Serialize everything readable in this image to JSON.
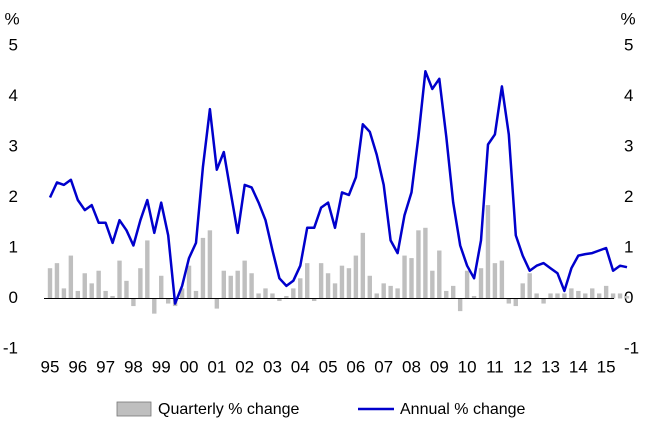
{
  "chart_data": {
    "type": "bar_line",
    "y_unit": "%",
    "categories": [
      "95",
      null,
      null,
      null,
      "96",
      null,
      null,
      null,
      "97",
      null,
      null,
      null,
      "98",
      null,
      null,
      null,
      "99",
      null,
      null,
      null,
      "00",
      null,
      null,
      null,
      "01",
      null,
      null,
      null,
      "02",
      null,
      null,
      null,
      "03",
      null,
      null,
      null,
      "04",
      null,
      null,
      null,
      "05",
      null,
      null,
      null,
      "06",
      null,
      null,
      null,
      "07",
      null,
      null,
      null,
      "08",
      null,
      null,
      null,
      "09",
      null,
      null,
      null,
      "10",
      null,
      null,
      null,
      "11",
      null,
      null,
      null,
      "12",
      null,
      null,
      null,
      "13",
      null,
      null,
      null,
      "14",
      null,
      null,
      null,
      "15",
      null,
      null,
      null
    ],
    "series": [
      {
        "name": "Quarterly % change",
        "type": "bar",
        "color": "#bfbfbf",
        "values": [
          0.6,
          0.7,
          0.2,
          0.85,
          0.15,
          0.5,
          0.3,
          0.55,
          0.15,
          0.05,
          0.75,
          0.35,
          -0.15,
          0.6,
          1.15,
          -0.3,
          0.45,
          -0.1,
          -0.15,
          0.2,
          0.65,
          0.15,
          1.2,
          1.35,
          -0.2,
          0.55,
          0.45,
          0.55,
          0.75,
          0.5,
          0.1,
          0.2,
          0.1,
          -0.05,
          0.05,
          0.2,
          0.4,
          0.7,
          -0.05,
          0.7,
          0.5,
          0.3,
          0.65,
          0.6,
          0.85,
          1.3,
          0.45,
          0.1,
          0.3,
          0.25,
          0.2,
          0.85,
          0.8,
          1.35,
          1.4,
          0.55,
          0.95,
          0.15,
          0.25,
          -0.25,
          0.55,
          0.05,
          0.6,
          1.85,
          0.7,
          0.75,
          -0.1,
          -0.15,
          0.3,
          0.5,
          0.1,
          -0.1,
          0.1,
          0.1,
          0.1,
          0.2,
          0.15,
          0.1,
          0.2,
          0.1,
          0.25,
          0.1,
          0.1,
          0.05
        ]
      },
      {
        "name": "Annual % change",
        "type": "line",
        "color": "#0000cc",
        "values": [
          2.0,
          2.3,
          2.25,
          2.35,
          1.95,
          1.75,
          1.85,
          1.5,
          1.5,
          1.1,
          1.55,
          1.35,
          1.05,
          1.55,
          1.95,
          1.3,
          1.9,
          1.25,
          -0.1,
          0.25,
          0.8,
          1.1,
          2.6,
          3.75,
          2.55,
          2.9,
          2.1,
          1.3,
          2.25,
          2.2,
          1.9,
          1.55,
          0.95,
          0.4,
          0.25,
          0.35,
          0.65,
          1.4,
          1.4,
          1.8,
          1.9,
          1.4,
          2.1,
          2.05,
          2.4,
          3.45,
          3.3,
          2.85,
          2.25,
          1.15,
          0.9,
          1.65,
          2.1,
          3.2,
          4.5,
          4.15,
          4.35,
          3.2,
          1.9,
          1.05,
          0.65,
          0.4,
          1.15,
          3.05,
          3.25,
          4.2,
          3.25,
          1.25,
          0.85,
          0.55,
          0.65,
          0.7,
          0.6,
          0.5,
          0.15,
          0.6,
          0.85,
          0.88,
          0.9,
          0.95,
          1.0,
          0.55,
          0.65,
          0.62
        ]
      }
    ],
    "ylim": [
      -1,
      5
    ],
    "yticks": [
      -1,
      0,
      1,
      2,
      3,
      4,
      5
    ],
    "legend": "bottom"
  }
}
